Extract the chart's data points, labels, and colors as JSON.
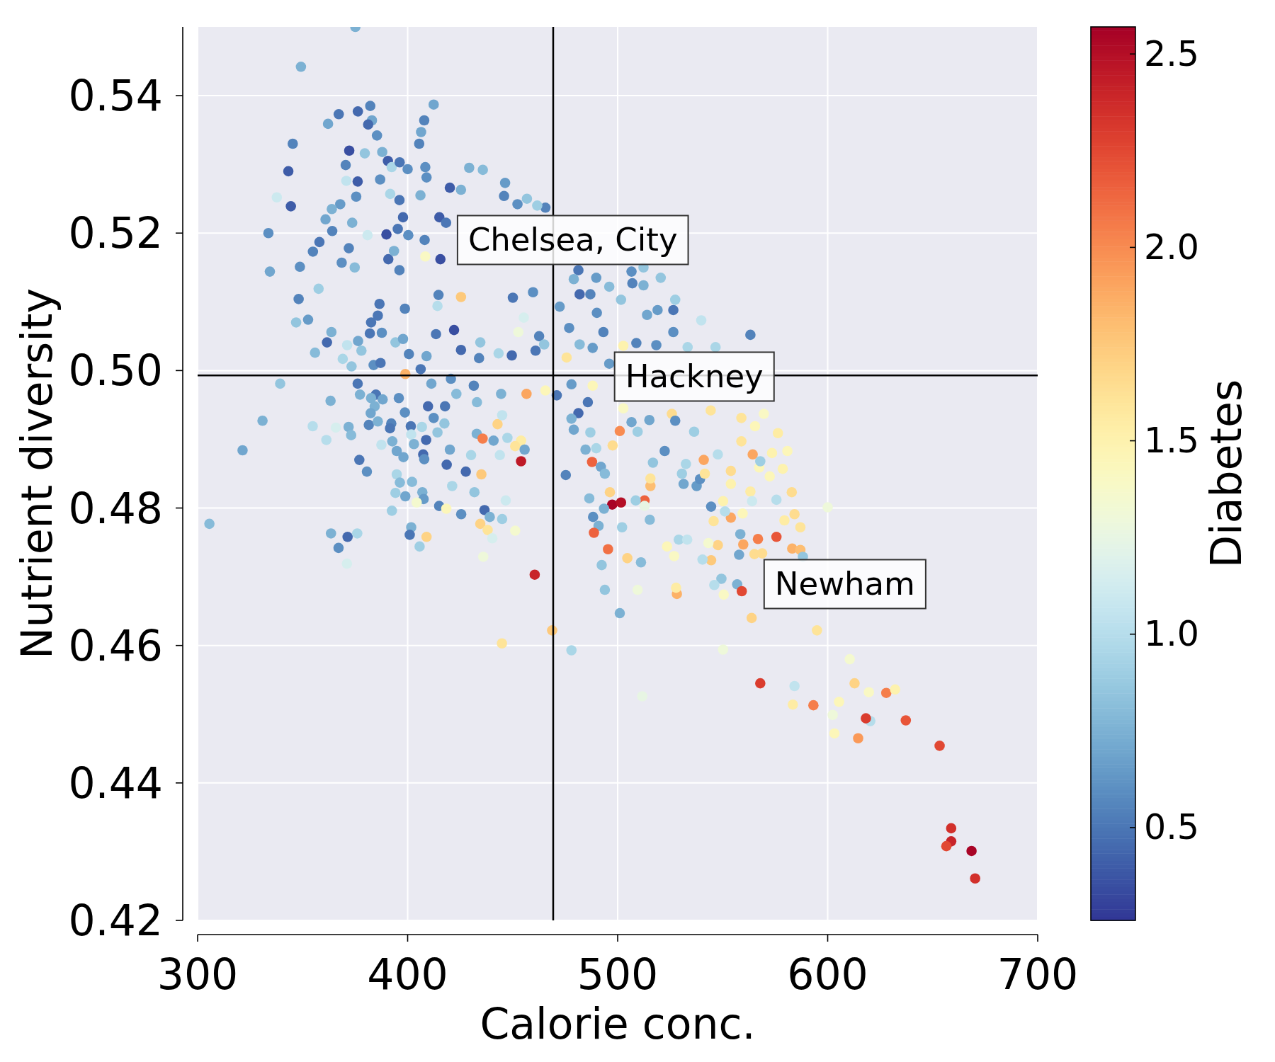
{
  "chart_data": {
    "type": "scatter",
    "xlabel": "Calorie conc.",
    "ylabel": "Nutrient diversity",
    "clabel": "Diabetes",
    "marker": "circle",
    "grid": true,
    "xlim": [
      300,
      700
    ],
    "ylim": [
      0.42,
      0.55
    ],
    "xticks": [
      300,
      400,
      500,
      600,
      700
    ],
    "yticks": [
      0.42,
      0.44,
      0.46,
      0.48,
      {
        "value": 0.5,
        "label": "0.50"
      },
      0.52,
      0.54
    ],
    "clim": [
      0.26,
      2.57
    ],
    "cticks": [
      0.5,
      {
        "value": 1,
        "label": "1.0"
      },
      1.5,
      {
        "value": 2,
        "label": "2.0"
      },
      2.5
    ],
    "ref_lines": [
      {
        "axis": "x",
        "value": 469.3,
        "color": "#000000"
      },
      {
        "axis": "y",
        "value": 0.4993,
        "color": "#000000"
      }
    ],
    "annotations": [
      "Chelsea, City",
      "Hackney",
      "Newham"
    ],
    "x": [
      375.1,
      349.2,
      382.2,
      367.2,
      376.3,
      362.1,
      383.0,
      381.2,
      385.4,
      412.4,
      407.9,
      406.4,
      405.5,
      345.3,
      372.2,
      379.6,
      387.9,
      390.6,
      392.4,
      396.2,
      400.0,
      370.5,
      343.2,
      376.2,
      370.8,
      386.9,
      408.4,
      409.0,
      420.1,
      429.3,
      435.8,
      446.4,
      337.7,
      344.4,
      375.5,
      391.7,
      396.1,
      406.1,
      425.4,
      452.3,
      456.8,
      367.9,
      363.9,
      360.9,
      373.6,
      397.8,
      415.1,
      418.3,
      333.7,
      364.1,
      358.0,
      354.9,
      372.0,
      389.9,
      380.9,
      395.3,
      400.3,
      408.1,
      415.6,
      390.8,
      393.5,
      368.6,
      374.8,
      348.7,
      334.4,
      408.4,
      357.6,
      348.1,
      425.4,
      414.7,
      396.1,
      386.6,
      398.7,
      414.2,
      445.9,
      465.6,
      461.7,
      506.6,
      507.0,
      512.3,
      512.3,
      520.5,
      481.3,
      489.8,
      481.9,
      487.0,
      496.0,
      450.1,
      459.7,
      479.1,
      472.4,
      490.1,
      501.6,
      527.4,
      526.5,
      519.0,
      514.0,
      539.8,
      526.5,
      563.2,
      455.3,
      452.7,
      462.6,
      465.0,
      460.9,
      449.6,
      475.7,
      476.9,
      493.2,
      508.9,
      518.4,
      533.3,
      546.6,
      502.7,
      488.1,
      481.9,
      496.0,
      456.6,
      465.6,
      471.0,
      478.0,
      485.8,
      481.3,
      488.1,
      502.7,
      525.8,
      544.3,
      558.9,
      569.6,
      501.0,
      515.1,
      479.1,
      509.5,
      576.3,
      536.4,
      352.6,
      346.9,
      363.7,
      361.6,
      355.9,
      371.2,
      376.4,
      378.0,
      382.6,
      385.8,
      387.7,
      382.0,
      369.1,
      373.3,
      383.8,
      387.1,
      394.2,
      397.8,
      400.6,
      406.2,
      409.0,
      413.5,
      422.1,
      425.4,
      434.0,
      434.6,
      443.3,
      398.9,
      339.3,
      376.2,
      363.3,
      377.3,
      384.9,
      382.6,
      388.1,
      395.8,
      384.3,
      382.4,
      398.7,
      411.3,
      420.6,
      431.5,
      409.7,
      417.8,
      412.4,
      423.2,
      433.0,
      444.5,
      330.9,
      354.8,
      365.8,
      371.9,
      373.1,
      361.3,
      381.5,
      385.8,
      392.2,
      391.6,
      401.5,
      401.7,
      406.8,
      417.5,
      414.2,
      408.8,
      403.0,
      392.7,
      387.5,
      442.8,
      445.0,
      432.9,
      435.7,
      440.9,
      447.5,
      454.0,
      451.2,
      455.7,
      454.0,
      321.4,
      377.0,
      380.6,
      394.8,
      398.0,
      407.4,
      407.9,
      420.1,
      418.6,
      427.7,
      430.2,
      443.9,
      435.1,
      394.8,
      396.3,
      402.1,
      394.2,
      398.9,
      407.0,
      407.6,
      421.2,
      431.8,
      415.0,
      418.4,
      425.5,
      436.6,
      439.1,
      445.0,
      446.7,
      451.2,
      434.6,
      438.1,
      440.3,
      436.0,
      460.5,
      404.3,
      392.5,
      305.6,
      363.5,
      371.4,
      376.0,
      367.1,
      371.1,
      401.7,
      401.0,
      409.0,
      405.7,
      478.0,
      487.0,
      484.7,
      489.8,
      497.6,
      506.6,
      527.4,
      522.4,
      516.8,
      515.6,
      515.6,
      512.8,
      512.8,
      487.8,
      492.0,
      493.9,
      475.3,
      496.3,
      497.4,
      501.6,
      486.5,
      493.5,
      488.3,
      490.9,
      488.7,
      502.1,
      495.4,
      504.6,
      511.1,
      492.4,
      515.3,
      508.6,
      468.8,
      444.9,
      478.0,
      493.9,
      501.0,
      509.5,
      528.2,
      527.8,
      523.5,
      526.9,
      529.1,
      533.1,
      541.0,
      537.6,
      531.4,
      539.2,
      541.5,
      530.6,
      532.5,
      547.7,
      544.5,
      550.2,
      553.9,
      545.7,
      551.1,
      559.5,
      553.9,
      553.9,
      563.2,
      564.0,
      575.6,
      582.9,
      584.2,
      579.4,
      587.0,
      600.0,
      565.4,
      558.9,
      564.3,
      567.4,
      573.5,
      578.6,
      580.8,
      572.4,
      567.9,
      575.6,
      566.8,
      559.8,
      558.4,
      557.8,
      565.1,
      568.8,
      583.1,
      587.0,
      588.2,
      547.7,
      544.5,
      540.4,
      543.2,
      549.4,
      546.0,
      556.9,
      559.1,
      550.5,
      563.8,
      594.9,
      567.9,
      584.2,
      550.2,
      593.2,
      583.4,
      511.7,
      610.5,
      612.8,
      619.6,
      627.9,
      632.1,
      605.4,
      602.4,
      620.3,
      618.2,
      637.2,
      603.2,
      614.5,
      653.3,
      658.8,
      658.8,
      656.5,
      668.5,
      670.2
    ],
    "values": [
      0.55,
      0.5442,
      0.5385,
      0.5373,
      0.5377,
      0.5359,
      0.5364,
      0.5358,
      0.5342,
      0.5387,
      0.5364,
      0.5347,
      0.533,
      0.533,
      0.532,
      0.5316,
      0.5318,
      0.5305,
      0.5296,
      0.5303,
      0.5293,
      0.5299,
      0.529,
      0.5275,
      0.5276,
      0.5278,
      0.5296,
      0.5281,
      0.5266,
      0.5295,
      0.5292,
      0.5273,
      0.5252,
      0.5239,
      0.5253,
      0.5257,
      0.5248,
      0.5255,
      0.5263,
      0.5242,
      0.525,
      0.5242,
      0.5235,
      0.522,
      0.5215,
      0.5223,
      0.5223,
      0.5215,
      0.52,
      0.5203,
      0.5187,
      0.5173,
      0.5178,
      0.5198,
      0.5197,
      0.5206,
      0.5197,
      0.519,
      0.5162,
      0.5162,
      0.5174,
      0.5157,
      0.515,
      0.5151,
      0.5144,
      0.5166,
      0.5119,
      0.5104,
      0.5107,
      0.511,
      0.5146,
      0.5097,
      0.509,
      0.5094,
      0.5254,
      0.5237,
      0.524,
      0.5144,
      0.5127,
      0.515,
      0.5124,
      0.5135,
      0.5146,
      0.5135,
      0.5111,
      0.5111,
      0.5122,
      0.5106,
      0.5114,
      0.5133,
      0.5093,
      0.5084,
      0.5103,
      0.5103,
      0.5088,
      0.5088,
      0.5081,
      0.5073,
      0.5056,
      0.5052,
      0.5077,
      0.5056,
      0.505,
      0.5038,
      0.5029,
      0.5022,
      0.5019,
      0.5062,
      0.5056,
      0.504,
      0.5037,
      0.5034,
      0.5034,
      0.5036,
      0.5033,
      0.5038,
      0.501,
      0.4966,
      0.4971,
      0.4964,
      0.498,
      0.4954,
      0.4938,
      0.4978,
      0.4945,
      0.4937,
      0.4942,
      0.4931,
      0.4937,
      0.4912,
      0.4928,
      0.4914,
      0.4911,
      0.4909,
      0.4911,
      0.5074,
      0.507,
      0.5056,
      0.5041,
      0.5026,
      0.5037,
      0.5043,
      0.5029,
      0.507,
      0.508,
      0.5055,
      0.5054,
      0.5017,
      0.5006,
      0.5008,
      0.5011,
      0.5041,
      0.5046,
      0.5024,
      0.5002,
      0.5021,
      0.5053,
      0.5059,
      0.503,
      0.5018,
      0.5041,
      0.5025,
      0.4995,
      0.4981,
      0.4981,
      0.4956,
      0.4965,
      0.4965,
      0.496,
      0.4958,
      0.496,
      0.4948,
      0.4938,
      0.4939,
      0.4981,
      0.4988,
      0.4978,
      0.4948,
      0.4948,
      0.4931,
      0.4966,
      0.4954,
      0.4966,
      0.4927,
      0.4919,
      0.4917,
      0.4918,
      0.4906,
      0.4899,
      0.4921,
      0.4926,
      0.4923,
      0.4916,
      0.4919,
      0.4907,
      0.4918,
      0.4923,
      0.491,
      0.4899,
      0.4893,
      0.4897,
      0.4892,
      0.4922,
      0.4935,
      0.4908,
      0.4901,
      0.4898,
      0.4902,
      0.4898,
      0.489,
      0.4885,
      0.4868,
      0.4884,
      0.487,
      0.4853,
      0.4883,
      0.4874,
      0.4878,
      0.4871,
      0.4885,
      0.4863,
      0.4853,
      0.4877,
      0.4877,
      0.4849,
      0.4849,
      0.4837,
      0.4838,
      0.4822,
      0.4817,
      0.4823,
      0.4813,
      0.4832,
      0.4823,
      0.4803,
      0.4799,
      0.4791,
      0.4797,
      0.4787,
      0.4784,
      0.4811,
      0.4767,
      0.4777,
      0.4768,
      0.4756,
      0.4729,
      0.4703,
      0.4808,
      0.4796,
      0.4777,
      0.4763,
      0.4758,
      0.4763,
      0.4742,
      0.4719,
      0.4772,
      0.4761,
      0.4758,
      0.4744,
      0.493,
      0.491,
      0.4885,
      0.4887,
      0.4891,
      0.4925,
      0.4927,
      0.4883,
      0.4866,
      0.4832,
      0.4843,
      0.4811,
      0.4803,
      0.4867,
      0.486,
      0.485,
      0.4848,
      0.4823,
      0.4805,
      0.4808,
      0.4814,
      0.4799,
      0.4787,
      0.4774,
      0.4764,
      0.4772,
      0.474,
      0.4727,
      0.4721,
      0.4717,
      0.4783,
      0.4811,
      0.4622,
      0.4603,
      0.4593,
      0.4681,
      0.4647,
      0.4681,
      0.4675,
      0.4684,
      0.4744,
      0.473,
      0.4754,
      0.4754,
      0.487,
      0.4832,
      0.4835,
      0.4842,
      0.485,
      0.485,
      0.4864,
      0.4878,
      0.4802,
      0.481,
      0.4786,
      0.4781,
      0.4795,
      0.4792,
      0.4835,
      0.4854,
      0.4824,
      0.481,
      0.4812,
      0.4823,
      0.4791,
      0.4782,
      0.4772,
      0.4801,
      0.4919,
      0.4897,
      0.4878,
      0.4859,
      0.488,
      0.4857,
      0.4883,
      0.4846,
      0.4868,
      0.4758,
      0.4755,
      0.4747,
      0.4762,
      0.4732,
      0.4733,
      0.4734,
      0.4741,
      0.4739,
      0.4729,
      0.4746,
      0.4724,
      0.4725,
      0.4749,
      0.4697,
      0.4688,
      0.4689,
      0.4679,
      0.4674,
      0.464,
      0.4622,
      0.4545,
      0.4541,
      0.4594,
      0.4513,
      0.4514,
      0.4526,
      0.458,
      0.4545,
      0.4532,
      0.4531,
      0.4536,
      0.4518,
      0.4499,
      0.449,
      0.4494,
      0.4491,
      0.4472,
      0.4465,
      0.4454,
      0.4334,
      0.4315,
      0.4308,
      0.4301,
      0.4261
    ],
    "cvalues": [
      0.75,
      0.75,
      0.55,
      0.5,
      0.45,
      0.7,
      0.7,
      0.45,
      0.6,
      0.7,
      0.55,
      0.7,
      0.55,
      0.55,
      0.35,
      0.85,
      0.75,
      0.4,
      0.95,
      0.5,
      0.6,
      0.55,
      0.4,
      0.4,
      1.05,
      0.6,
      0.6,
      0.6,
      0.4,
      0.75,
      0.8,
      0.65,
      1.1,
      0.4,
      0.6,
      0.95,
      0.5,
      0.75,
      0.75,
      0.6,
      0.85,
      0.65,
      0.75,
      0.7,
      0.75,
      0.45,
      0.4,
      0.5,
      0.6,
      0.55,
      0.5,
      0.55,
      0.55,
      0.35,
      1.1,
      0.5,
      0.6,
      0.55,
      0.35,
      0.45,
      0.75,
      0.6,
      0.8,
      0.6,
      0.7,
      1.4,
      0.9,
      0.55,
      1.75,
      0.55,
      0.55,
      0.5,
      0.55,
      1.0,
      0.55,
      0.55,
      0.9,
      0.6,
      0.55,
      0.85,
      0.75,
      0.85,
      0.5,
      0.65,
      0.45,
      0.55,
      0.8,
      0.5,
      0.6,
      0.75,
      0.65,
      0.6,
      0.85,
      0.9,
      0.5,
      0.65,
      0.7,
      1.05,
      0.6,
      0.55,
      1.15,
      1.3,
      0.55,
      0.85,
      0.5,
      0.45,
      1.6,
      0.6,
      0.55,
      0.55,
      0.6,
      0.95,
      0.95,
      1.5,
      0.65,
      0.8,
      0.65,
      1.9,
      1.45,
      0.5,
      0.65,
      0.5,
      0.45,
      1.45,
      1.4,
      1.65,
      1.6,
      1.6,
      1.4,
      2.0,
      0.7,
      0.7,
      0.9,
      1.55,
      0.9,
      0.65,
      0.85,
      0.75,
      0.45,
      0.8,
      1.05,
      0.7,
      0.85,
      0.5,
      0.5,
      0.6,
      0.5,
      0.95,
      0.85,
      0.6,
      0.5,
      0.85,
      0.7,
      0.55,
      0.5,
      0.7,
      0.5,
      0.35,
      0.45,
      0.55,
      0.85,
      0.95,
      1.85,
      0.85,
      0.5,
      0.75,
      0.75,
      0.5,
      0.75,
      0.7,
      0.6,
      0.75,
      0.7,
      0.6,
      0.7,
      0.6,
      0.55,
      0.45,
      0.5,
      0.6,
      0.8,
      0.8,
      0.75,
      0.75,
      1.0,
      1.15,
      0.75,
      0.8,
      1.0,
      0.55,
      0.75,
      0.55,
      0.5,
      0.5,
      1.05,
      0.95,
      0.85,
      0.85,
      0.45,
      0.75,
      0.75,
      1.05,
      1.7,
      1.05,
      0.75,
      2.05,
      0.7,
      0.95,
      1.55,
      1.6,
      0.7,
      2.45,
      0.7,
      0.5,
      0.6,
      0.7,
      0.7,
      0.45,
      0.6,
      0.7,
      0.45,
      0.45,
      0.95,
      1.05,
      1.75,
      0.95,
      0.8,
      0.8,
      0.9,
      0.7,
      0.75,
      0.65,
      0.95,
      0.85,
      0.55,
      1.45,
      0.6,
      0.45,
      0.75,
      0.9,
      1.1,
      1.35,
      1.7,
      1.6,
      1.15,
      1.3,
      2.4,
      1.35,
      0.9,
      0.8,
      0.75,
      0.45,
      0.95,
      0.6,
      1.15,
      0.75,
      0.5,
      1.7,
      0.9,
      0.75,
      0.9,
      0.75,
      0.95,
      1.65,
      0.7,
      0.6,
      0.6,
      0.85,
      1.8,
      1.6,
      2.15,
      1.25,
      2.15,
      0.7,
      0.8,
      0.55,
      1.7,
      2.55,
      2.5,
      0.8,
      0.75,
      0.6,
      0.75,
      2.15,
      0.9,
      2.1,
      1.7,
      0.8,
      0.85,
      0.8,
      0.9,
      1.75,
      1.6,
      0.95,
      0.85,
      0.75,
      1.3,
      1.85,
      1.55,
      1.45,
      1.4,
      0.95,
      1.05,
      1.9,
      0.65,
      0.7,
      0.6,
      1.6,
      0.9,
      0.95,
      1.0,
      0.6,
      1.5,
      1.9,
      1.6,
      1.0,
      1.45,
      1.5,
      1.65,
      1.55,
      1.1,
      1.0,
      1.65,
      1.65,
      1.55,
      1.6,
      1.3,
      1.45,
      1.6,
      1.9,
      1.45,
      1.5,
      1.5,
      1.45,
      1.45,
      0.9,
      2.2,
      2.05,
      1.9,
      0.75,
      0.7,
      1.65,
      1.65,
      1.85,
      1.8,
      0.85,
      1.7,
      1.75,
      1.0,
      1.35,
      0.85,
      1.0,
      0.75,
      2.25,
      1.4,
      1.7,
      1.6,
      2.3,
      1.05,
      1.3,
      2.05,
      1.55,
      1.25,
      1.35,
      1.7,
      1.4,
      2.05,
      1.5,
      1.45,
      1.3,
      1.0,
      2.3,
      2.2,
      1.45,
      1.95,
      2.25,
      2.35,
      2.4,
      2.25,
      2.55,
      2.35
    ]
  }
}
